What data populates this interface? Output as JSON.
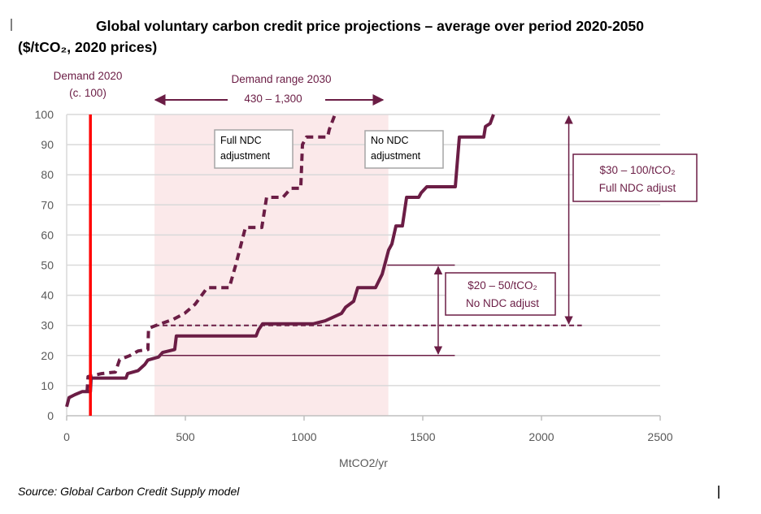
{
  "title_line1": "Global voluntary carbon credit price projections – average over period 2020-2050",
  "title_line2": "($/tCO₂, 2020 prices)",
  "source": "Source: Global Carbon Credit Supply model",
  "colors": {
    "curve": "#6b1d45",
    "demand_2020": "#ff0000",
    "band": "#fbe9ea",
    "grid": "#d9d9d9"
  },
  "chart_data": {
    "type": "line",
    "xlabel": "MtCO2/yr",
    "ylabel": "",
    "xlim": [
      0,
      2500
    ],
    "ylim": [
      0,
      100
    ],
    "xticks": [
      "0",
      "500",
      "1000",
      "1500",
      "2000",
      "2500"
    ],
    "yticks": [
      "0",
      "10",
      "20",
      "30",
      "40",
      "50",
      "60",
      "70",
      "80",
      "90",
      "100"
    ],
    "grid": "horizontal",
    "series": [
      {
        "name": "No NDC adjustment",
        "style": "solid",
        "points": [
          [
            0,
            3
          ],
          [
            10,
            6
          ],
          [
            35,
            7
          ],
          [
            65,
            8
          ],
          [
            100,
            8
          ],
          [
            103,
            12.5
          ],
          [
            250,
            12.5
          ],
          [
            257,
            14
          ],
          [
            301,
            15
          ],
          [
            329,
            17
          ],
          [
            342,
            18.5
          ],
          [
            387,
            19.5
          ],
          [
            404,
            21
          ],
          [
            455,
            22
          ],
          [
            462,
            26.5
          ],
          [
            798,
            26.5
          ],
          [
            808,
            28.5
          ],
          [
            825,
            30.5
          ],
          [
            1038,
            30.5
          ],
          [
            1089,
            31.5
          ],
          [
            1158,
            34
          ],
          [
            1175,
            36
          ],
          [
            1209,
            38
          ],
          [
            1226,
            42.5
          ],
          [
            1301,
            42.5
          ],
          [
            1329,
            47
          ],
          [
            1356,
            55
          ],
          [
            1370,
            57
          ],
          [
            1387,
            63
          ],
          [
            1414,
            63
          ],
          [
            1432,
            72.5
          ],
          [
            1483,
            72.5
          ],
          [
            1493,
            74
          ],
          [
            1517,
            76
          ],
          [
            1637,
            76
          ],
          [
            1654,
            92.5
          ],
          [
            1757,
            92.5
          ],
          [
            1764,
            96
          ],
          [
            1784,
            97
          ],
          [
            1798,
            100
          ]
        ]
      },
      {
        "name": "Full NDC adjustment",
        "style": "dashed",
        "points": [
          [
            86,
            8
          ],
          [
            90,
            13
          ],
          [
            147,
            14
          ],
          [
            205,
            14.5
          ],
          [
            223,
            18.6
          ],
          [
            267,
            20
          ],
          [
            301,
            21.5
          ],
          [
            342,
            22
          ],
          [
            345,
            29
          ],
          [
            377,
            30
          ],
          [
            449,
            32
          ],
          [
            497,
            34
          ],
          [
            541,
            37
          ],
          [
            592,
            42.5
          ],
          [
            685,
            42.5
          ],
          [
            712,
            50
          ],
          [
            753,
            62.5
          ],
          [
            822,
            62.5
          ],
          [
            842,
            72.5
          ],
          [
            911,
            72.5
          ],
          [
            945,
            75.5
          ],
          [
            986,
            75.5
          ],
          [
            993,
            90
          ],
          [
            1010,
            92.5
          ],
          [
            1099,
            92.5
          ],
          [
            1106,
            95
          ],
          [
            1130,
            100
          ]
        ]
      }
    ],
    "annotations": {
      "demand_2020": {
        "label_line1": "Demand 2020",
        "label_line2": "(c. 100)",
        "x": 100
      },
      "demand_range_2030": {
        "label_line1": "Demand range 2030",
        "label_line2": "430 – 1,300",
        "shaded_x": [
          370,
          1355
        ]
      },
      "full_ndc_box": {
        "line1": "Full NDC",
        "line2": "adjustment"
      },
      "no_ndc_box": {
        "line1": "No NDC",
        "line2": "adjustment"
      },
      "full_range": {
        "line1": "$30 – 100/tCO₂",
        "line2": "Full NDC adjust",
        "y_range": [
          30,
          100
        ],
        "x": 2115,
        "ref_line_y": 30,
        "ref_line_x": [
          370,
          2170
        ]
      },
      "no_range": {
        "line1": "$20 – 50/tCO₂",
        "line2": "No NDC adjust",
        "y_range": [
          20,
          50
        ],
        "x": 1565,
        "line_20_x": [
          400,
          1635
        ],
        "line_50_x": [
          1350,
          1635
        ]
      }
    }
  }
}
